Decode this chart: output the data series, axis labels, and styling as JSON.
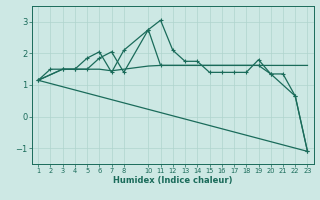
{
  "xlabel": "Humidex (Indice chaleur)",
  "bg_color": "#cde8e4",
  "line_color": "#1a6b5a",
  "grid_color": "#b0d4ce",
  "xlim": [
    0.5,
    23.5
  ],
  "ylim": [
    -1.5,
    3.5
  ],
  "yticks": [
    -1,
    0,
    1,
    2,
    3
  ],
  "xticks": [
    1,
    2,
    3,
    4,
    5,
    6,
    7,
    8,
    10,
    11,
    12,
    13,
    14,
    15,
    16,
    17,
    18,
    19,
    20,
    21,
    22,
    23
  ],
  "line_peaked": {
    "x": [
      1,
      2,
      3,
      4,
      5,
      6,
      7,
      8,
      10,
      11,
      12,
      13,
      14,
      15,
      16,
      17,
      18,
      19,
      20,
      21,
      22,
      23
    ],
    "y": [
      1.15,
      1.5,
      1.5,
      1.5,
      1.85,
      2.05,
      1.4,
      2.1,
      2.75,
      3.05,
      2.1,
      1.75,
      1.75,
      1.4,
      1.4,
      1.4,
      1.4,
      1.8,
      1.35,
      1.35,
      0.65,
      -1.1
    ]
  },
  "line_flat": {
    "x": [
      1,
      3,
      4,
      5,
      6,
      7,
      8,
      10,
      11,
      12,
      13,
      14,
      15,
      16,
      17,
      18,
      19,
      20,
      21,
      22,
      23
    ],
    "y": [
      1.15,
      1.5,
      1.5,
      1.5,
      1.5,
      1.45,
      1.5,
      1.6,
      1.62,
      1.62,
      1.62,
      1.62,
      1.62,
      1.62,
      1.62,
      1.62,
      1.62,
      1.62,
      1.62,
      1.62,
      1.62
    ]
  },
  "line_triangle": {
    "x": [
      1,
      3,
      4,
      5,
      6,
      7,
      8,
      10,
      11,
      19,
      20,
      22,
      23
    ],
    "y": [
      1.15,
      1.5,
      1.5,
      1.5,
      1.85,
      2.05,
      1.4,
      2.75,
      1.62,
      1.62,
      1.35,
      0.65,
      -1.1
    ]
  },
  "line_diagonal": {
    "x": [
      1,
      23
    ],
    "y": [
      1.15,
      -1.1
    ]
  }
}
